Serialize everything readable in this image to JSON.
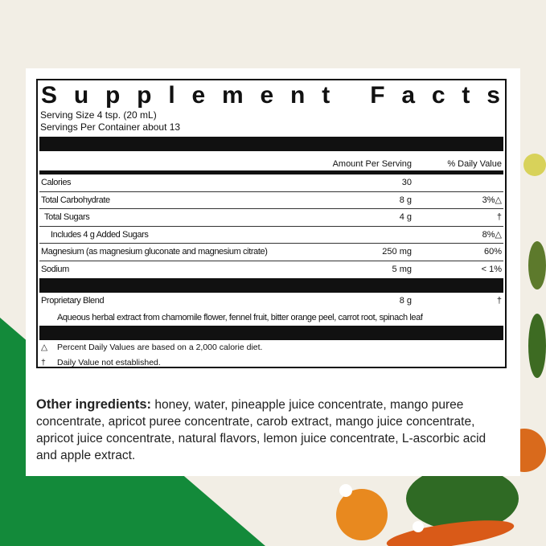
{
  "label": {
    "title": "Supplement Facts",
    "serving_size": "Serving Size 4 tsp. (20 mL)",
    "servings_per_container": "Servings Per Container about 13",
    "header_amount": "Amount Per Serving",
    "header_dv": "% Daily Value",
    "rows": [
      {
        "name": "Calories",
        "amount": "30",
        "dv": ""
      },
      {
        "name": "Total Carbohydrate",
        "amount": "8 g",
        "dv": "3%△"
      },
      {
        "name": "Total Sugars",
        "amount": "4 g",
        "dv": "†"
      },
      {
        "name": "Includes 4 g Added Sugars",
        "amount": "",
        "dv": "8%△"
      },
      {
        "name": "Magnesium (as magnesium gluconate and magnesium citrate)",
        "amount": "250 mg",
        "dv": "60%"
      },
      {
        "name": "Sodium",
        "amount": "5 mg",
        "dv": "< 1%"
      }
    ],
    "blend": {
      "name": "Proprietary Blend",
      "amount": "8 g",
      "dv": "†",
      "description": "Aqueous herbal extract from chamomile flower, fennel fruit, bitter orange peel, carrot root, spinach leaf"
    },
    "footnotes": [
      {
        "symbol": "△",
        "text": "Percent Daily Values are based on a 2,000 calorie diet."
      },
      {
        "symbol": "†",
        "text": "Daily Value not established."
      }
    ]
  },
  "other_ingredients": {
    "heading": "Other ingredients:",
    "text": "honey, water, pineapple juice concentrate, mango puree concentrate, apricot puree concentrate, carob extract, mango juice concentrate, apricot juice concentrate, natural flavors, lemon juice concentrate, L-ascorbic acid and apple extract."
  },
  "colors": {
    "background": "#f2eee5",
    "green": "#138a3a",
    "text": "#111111"
  }
}
